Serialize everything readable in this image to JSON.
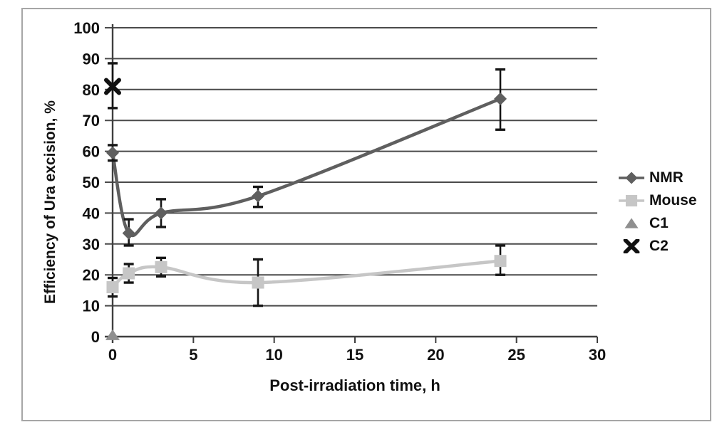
{
  "figure": {
    "background": "#ffffff",
    "border_color": "#a6a6a6"
  },
  "chart_data": {
    "type": "line",
    "title": "",
    "xlabel": "Post-irradiation time, h",
    "ylabel": "Efficiency of Ura excision, %",
    "x_axis": {
      "min": 0,
      "max": 30,
      "ticks": [
        0,
        5,
        10,
        15,
        20,
        25,
        30
      ]
    },
    "y_axis": {
      "min": 0,
      "max": 100,
      "ticks": [
        0,
        10,
        20,
        30,
        40,
        50,
        60,
        70,
        80,
        90,
        100
      ]
    },
    "grid": "horizontal",
    "legend_position": "right",
    "grid_color": "#4a4a4a",
    "axis_color": "#3f3f3f",
    "tick_label_color": "#111111",
    "error_bar_color": "#161616",
    "series": [
      {
        "name": "NMR",
        "marker": "diamond",
        "color": "#5f5f5f",
        "smooth_line": true,
        "points": [
          {
            "x": 0,
            "y": 59.5,
            "err_up": 2.5,
            "err_down": 2.5
          },
          {
            "x": 1,
            "y": 33.5,
            "err_up": 4.5,
            "err_down": 4
          },
          {
            "x": 3,
            "y": 40,
            "err_up": 4.5,
            "err_down": 4.5
          },
          {
            "x": 9,
            "y": 45.5,
            "err_up": 3,
            "err_down": 3.5
          },
          {
            "x": 24,
            "y": 77,
            "err_up": 9.5,
            "err_down": 10
          }
        ]
      },
      {
        "name": "Mouse",
        "marker": "square",
        "color": "#c6c6c6",
        "smooth_line": true,
        "points": [
          {
            "x": 0,
            "y": 16,
            "err_up": 3,
            "err_down": 3
          },
          {
            "x": 1,
            "y": 20.5,
            "err_up": 3,
            "err_down": 3
          },
          {
            "x": 3,
            "y": 22.5,
            "err_up": 3,
            "err_down": 3
          },
          {
            "x": 9,
            "y": 17.5,
            "err_up": 7.5,
            "err_down": 7.5
          },
          {
            "x": 24,
            "y": 24.5,
            "err_up": 5,
            "err_down": 4.5
          }
        ]
      },
      {
        "name": "C1",
        "marker": "triangle",
        "color": "#8f8f8f",
        "smooth_line": false,
        "points": [
          {
            "x": 0,
            "y": 0.5,
            "err_up": 0,
            "err_down": 0
          }
        ]
      },
      {
        "name": "C2",
        "marker": "x",
        "color": "#111111",
        "smooth_line": false,
        "points": [
          {
            "x": 0,
            "y": 81,
            "err_up": 7.5,
            "err_down": 7
          }
        ]
      }
    ]
  }
}
